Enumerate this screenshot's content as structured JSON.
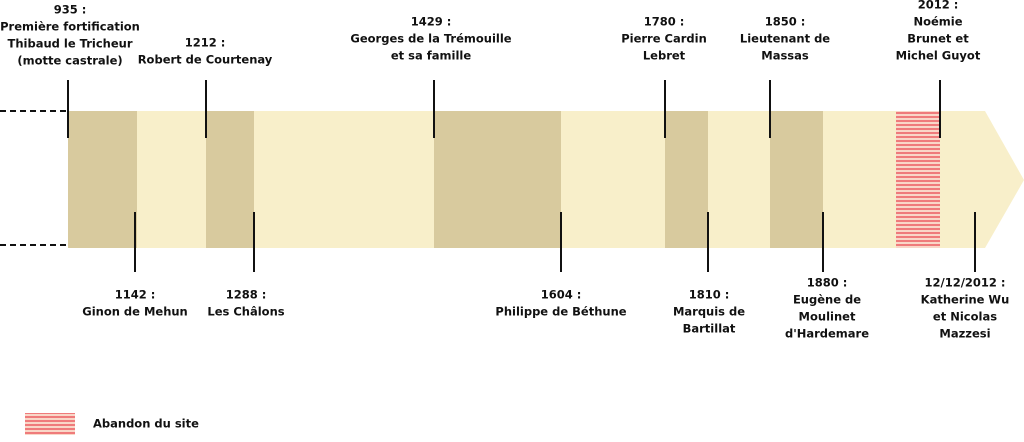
{
  "top_events": [
    {
      "lines": [
        "935 :",
        "Première fortification",
        "Thibaud le Tricheur",
        "(motte castrale)"
      ]
    },
    {
      "lines": [
        "1212 :",
        "Robert de Courtenay"
      ]
    },
    {
      "lines": [
        "1429 :",
        "Georges de la Trémouille",
        "et sa famille"
      ]
    },
    {
      "lines": [
        "1780 :",
        "Pierre Cardin",
        "Lebret"
      ]
    },
    {
      "lines": [
        "1850 :",
        "Lieutenant de",
        "Massas"
      ]
    },
    {
      "lines": [
        "2012 :",
        "Noémie",
        "Brunet et",
        "Michel Guyot"
      ]
    }
  ],
  "bottom_events": [
    {
      "lines": [
        "1142 :",
        "Ginon de Mehun"
      ]
    },
    {
      "lines": [
        "1288 :",
        "Les Châlons"
      ]
    },
    {
      "lines": [
        "1604 :",
        "Philippe de Béthune"
      ]
    },
    {
      "lines": [
        "1810 :",
        "Marquis de",
        "Bartillat"
      ]
    },
    {
      "lines": [
        "1880 :",
        "Eugène de",
        "Moulinet",
        "d'Hardemare"
      ]
    },
    {
      "lines": [
        "12/12/2012 :",
        "Katherine Wu",
        "et Nicolas",
        "Mazzesi"
      ]
    }
  ],
  "legend": {
    "label": "Abandon du site"
  }
}
